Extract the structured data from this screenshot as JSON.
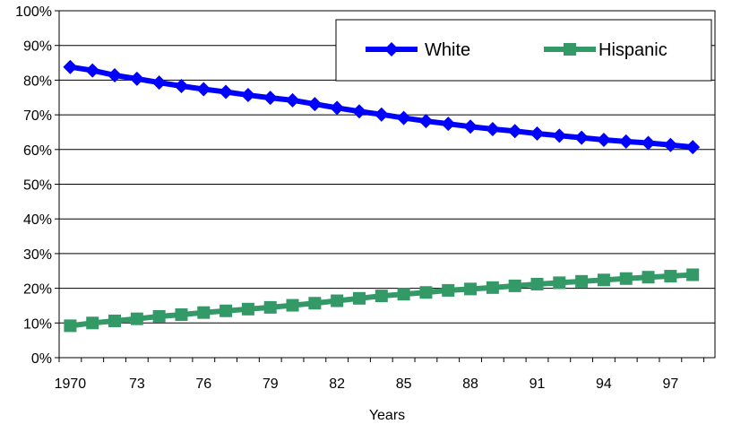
{
  "chart_data": {
    "type": "line",
    "xlabel": "Years",
    "ylabel": "",
    "ylim": [
      0,
      100
    ],
    "y_tick_labels": [
      "0%",
      "10%",
      "20%",
      "30%",
      "40%",
      "50%",
      "60%",
      "70%",
      "80%",
      "90%",
      "100%"
    ],
    "x_tick_labels": [
      "1970",
      "73",
      "76",
      "79",
      "82",
      "85",
      "88",
      "91",
      "94",
      "97"
    ],
    "x": [
      1970,
      1971,
      1972,
      1973,
      1974,
      1975,
      1976,
      1977,
      1978,
      1979,
      1980,
      1981,
      1982,
      1983,
      1984,
      1985,
      1986,
      1987,
      1988,
      1989,
      1990,
      1991,
      1992,
      1993,
      1994,
      1995,
      1996,
      1997,
      1998
    ],
    "grid": "horizontal",
    "legend_position": "top-right",
    "series": [
      {
        "name": "White",
        "color": "#0000FF",
        "marker": "diamond",
        "values": [
          83.8,
          82.8,
          81.4,
          80.4,
          79.3,
          78.3,
          77.4,
          76.6,
          75.7,
          74.9,
          74.2,
          73.1,
          72.0,
          71.0,
          70.1,
          69.1,
          68.2,
          67.4,
          66.6,
          65.9,
          65.3,
          64.6,
          64.0,
          63.4,
          62.8,
          62.3,
          61.9,
          61.3,
          60.7
        ]
      },
      {
        "name": "Hispanic",
        "color": "#339966",
        "marker": "square",
        "values": [
          9.2,
          10.0,
          10.6,
          11.2,
          11.9,
          12.4,
          13.0,
          13.5,
          14.0,
          14.5,
          15.1,
          15.7,
          16.4,
          17.1,
          17.8,
          18.3,
          18.8,
          19.4,
          19.8,
          20.2,
          20.7,
          21.2,
          21.6,
          22.0,
          22.4,
          22.8,
          23.2,
          23.5,
          23.9
        ]
      }
    ]
  }
}
